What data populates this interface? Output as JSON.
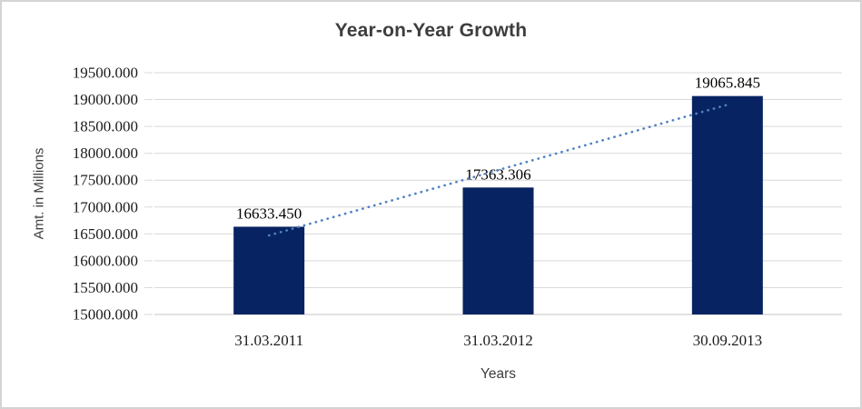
{
  "chart_data": {
    "type": "bar",
    "title": "Year-on-Year Growth",
    "xlabel": "Years",
    "ylabel": "Amt. in Millions",
    "categories": [
      "31.03.2011",
      "31.03.2012",
      "30.09.2013"
    ],
    "series": [
      {
        "name": "Amt. in Millions",
        "values": [
          16633.45,
          17363.306,
          19065.845
        ]
      }
    ],
    "data_labels": [
      "16633.450",
      "17363.306",
      "19065.845"
    ],
    "ylim": [
      15000,
      19500
    ],
    "ytick_step": 500,
    "ytick_labels": [
      "15000.000",
      "15500.000",
      "16000.000",
      "16500.000",
      "17000.000",
      "17500.000",
      "18000.000",
      "18500.000",
      "19000.000",
      "19500.000"
    ],
    "grid": true,
    "legend": "none",
    "trendline": {
      "type": "linear",
      "style": "dotted"
    }
  },
  "colors": {
    "bar": "#082361",
    "trendline": "#4f81c3",
    "gridline": "#d9d9d9",
    "axis_line": "#c6c6c6",
    "frame_border": "#d4d4d4"
  }
}
